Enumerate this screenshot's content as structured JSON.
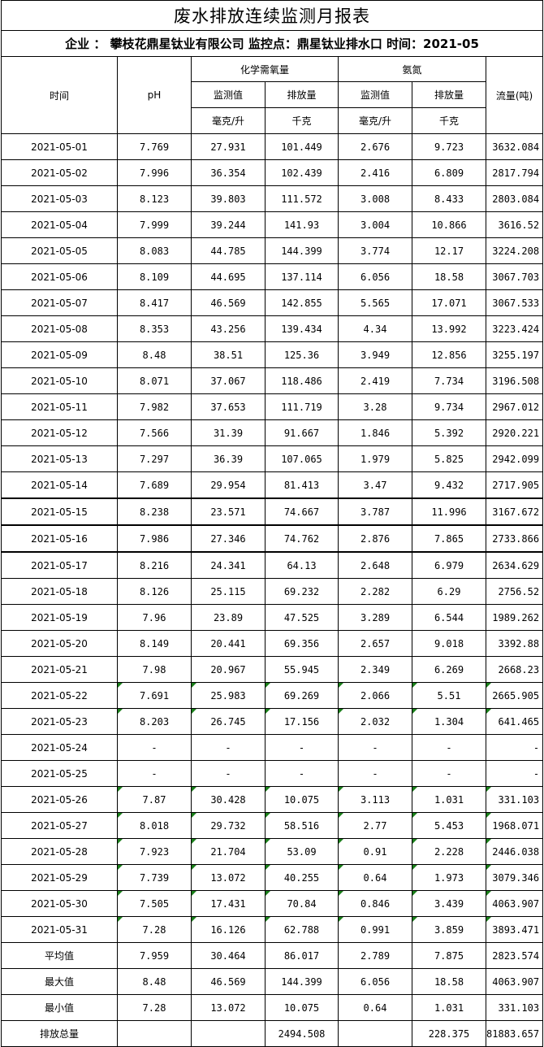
{
  "title": "废水排放连续监测月报表",
  "info": "企业 ： 攀枝花鼎星钛业有限公司 监控点：鼎星钛业排水口 时间：2021-05",
  "headers": {
    "time": "时间",
    "ph": "pH",
    "cod_group": "化学需氧量",
    "nh_group": "氨氮",
    "flow": "流量(吨)",
    "measured": "监测值",
    "emission": "排放量",
    "unit_conc": "毫克/升",
    "unit_kg": "千克"
  },
  "rows": [
    {
      "date": "2021-05-01",
      "ph": "7.769",
      "cod_m": "27.931",
      "cod_e": "101.449",
      "nh_m": "2.676",
      "nh_e": "9.723",
      "flow": "3632.084"
    },
    {
      "date": "2021-05-02",
      "ph": "7.996",
      "cod_m": "36.354",
      "cod_e": "102.439",
      "nh_m": "2.416",
      "nh_e": "6.809",
      "flow": "2817.794"
    },
    {
      "date": "2021-05-03",
      "ph": "8.123",
      "cod_m": "39.803",
      "cod_e": "111.572",
      "nh_m": "3.008",
      "nh_e": "8.433",
      "flow": "2803.084"
    },
    {
      "date": "2021-05-04",
      "ph": "7.999",
      "cod_m": "39.244",
      "cod_e": "141.93",
      "nh_m": "3.004",
      "nh_e": "10.866",
      "flow": "3616.52"
    },
    {
      "date": "2021-05-05",
      "ph": "8.083",
      "cod_m": "44.785",
      "cod_e": "144.399",
      "nh_m": "3.774",
      "nh_e": "12.17",
      "flow": "3224.208"
    },
    {
      "date": "2021-05-06",
      "ph": "8.109",
      "cod_m": "44.695",
      "cod_e": "137.114",
      "nh_m": "6.056",
      "nh_e": "18.58",
      "flow": "3067.703"
    },
    {
      "date": "2021-05-07",
      "ph": "8.417",
      "cod_m": "46.569",
      "cod_e": "142.855",
      "nh_m": "5.565",
      "nh_e": "17.071",
      "flow": "3067.533"
    },
    {
      "date": "2021-05-08",
      "ph": "8.353",
      "cod_m": "43.256",
      "cod_e": "139.434",
      "nh_m": "4.34",
      "nh_e": "13.992",
      "flow": "3223.424"
    },
    {
      "date": "2021-05-09",
      "ph": "8.48",
      "cod_m": "38.51",
      "cod_e": "125.36",
      "nh_m": "3.949",
      "nh_e": "12.856",
      "flow": "3255.197"
    },
    {
      "date": "2021-05-10",
      "ph": "8.071",
      "cod_m": "37.067",
      "cod_e": "118.486",
      "nh_m": "2.419",
      "nh_e": "7.734",
      "flow": "3196.508"
    },
    {
      "date": "2021-05-11",
      "ph": "7.982",
      "cod_m": "37.653",
      "cod_e": "111.719",
      "nh_m": "3.28",
      "nh_e": "9.734",
      "flow": "2967.012"
    },
    {
      "date": "2021-05-12",
      "ph": "7.566",
      "cod_m": "31.39",
      "cod_e": "91.667",
      "nh_m": "1.846",
      "nh_e": "5.392",
      "flow": "2920.221"
    },
    {
      "date": "2021-05-13",
      "ph": "7.297",
      "cod_m": "36.39",
      "cod_e": "107.065",
      "nh_m": "1.979",
      "nh_e": "5.825",
      "flow": "2942.099"
    },
    {
      "date": "2021-05-14",
      "ph": "7.689",
      "cod_m": "29.954",
      "cod_e": "81.413",
      "nh_m": "3.47",
      "nh_e": "9.432",
      "flow": "2717.905"
    },
    {
      "date": "2021-05-15",
      "ph": "8.238",
      "cod_m": "23.571",
      "cod_e": "74.667",
      "nh_m": "3.787",
      "nh_e": "11.996",
      "flow": "3167.672"
    },
    {
      "date": "2021-05-16",
      "ph": "7.986",
      "cod_m": "27.346",
      "cod_e": "74.762",
      "nh_m": "2.876",
      "nh_e": "7.865",
      "flow": "2733.866"
    },
    {
      "date": "2021-05-17",
      "ph": "8.216",
      "cod_m": "24.341",
      "cod_e": "64.13",
      "nh_m": "2.648",
      "nh_e": "6.979",
      "flow": "2634.629"
    },
    {
      "date": "2021-05-18",
      "ph": "8.126",
      "cod_m": "25.115",
      "cod_e": "69.232",
      "nh_m": "2.282",
      "nh_e": "6.29",
      "flow": "2756.52"
    },
    {
      "date": "2021-05-19",
      "ph": "7.96",
      "cod_m": "23.89",
      "cod_e": "47.525",
      "nh_m": "3.289",
      "nh_e": "6.544",
      "flow": "1989.262"
    },
    {
      "date": "2021-05-20",
      "ph": "8.149",
      "cod_m": "20.441",
      "cod_e": "69.356",
      "nh_m": "2.657",
      "nh_e": "9.018",
      "flow": "3392.88"
    },
    {
      "date": "2021-05-21",
      "ph": "7.98",
      "cod_m": "20.967",
      "cod_e": "55.945",
      "nh_m": "2.349",
      "nh_e": "6.269",
      "flow": "2668.23"
    },
    {
      "date": "2021-05-22",
      "ph": "7.691",
      "cod_m": "25.983",
      "cod_e": "69.269",
      "nh_m": "2.066",
      "nh_e": "5.51",
      "flow": "2665.905"
    },
    {
      "date": "2021-05-23",
      "ph": "8.203",
      "cod_m": "26.745",
      "cod_e": "17.156",
      "nh_m": "2.032",
      "nh_e": "1.304",
      "flow": "641.465"
    },
    {
      "date": "2021-05-24",
      "ph": "-",
      "cod_m": "-",
      "cod_e": "-",
      "nh_m": "-",
      "nh_e": "-",
      "flow": "-"
    },
    {
      "date": "2021-05-25",
      "ph": "-",
      "cod_m": "-",
      "cod_e": "-",
      "nh_m": "-",
      "nh_e": "-",
      "flow": "-"
    },
    {
      "date": "2021-05-26",
      "ph": "7.87",
      "cod_m": "30.428",
      "cod_e": "10.075",
      "nh_m": "3.113",
      "nh_e": "1.031",
      "flow": "331.103"
    },
    {
      "date": "2021-05-27",
      "ph": "8.018",
      "cod_m": "29.732",
      "cod_e": "58.516",
      "nh_m": "2.77",
      "nh_e": "5.453",
      "flow": "1968.071"
    },
    {
      "date": "2021-05-28",
      "ph": "7.923",
      "cod_m": "21.704",
      "cod_e": "53.09",
      "nh_m": "0.91",
      "nh_e": "2.228",
      "flow": "2446.038"
    },
    {
      "date": "2021-05-29",
      "ph": "7.739",
      "cod_m": "13.072",
      "cod_e": "40.255",
      "nh_m": "0.64",
      "nh_e": "1.973",
      "flow": "3079.346"
    },
    {
      "date": "2021-05-30",
      "ph": "7.505",
      "cod_m": "17.431",
      "cod_e": "70.84",
      "nh_m": "0.846",
      "nh_e": "3.439",
      "flow": "4063.907"
    },
    {
      "date": "2021-05-31",
      "ph": "7.28",
      "cod_m": "16.126",
      "cod_e": "62.788",
      "nh_m": "0.991",
      "nh_e": "3.859",
      "flow": "3893.471"
    }
  ],
  "summary": {
    "avg": {
      "label": "平均值",
      "ph": "7.959",
      "cod_m": "30.464",
      "cod_e": "86.017",
      "nh_m": "2.789",
      "nh_e": "7.875",
      "flow": "2823.574"
    },
    "max": {
      "label": "最大值",
      "ph": "8.48",
      "cod_m": "46.569",
      "cod_e": "144.399",
      "nh_m": "6.056",
      "nh_e": "18.58",
      "flow": "4063.907"
    },
    "min": {
      "label": "最小值",
      "ph": "7.28",
      "cod_m": "13.072",
      "cod_e": "10.075",
      "nh_m": "0.64",
      "nh_e": "1.031",
      "flow": "331.103"
    },
    "total": {
      "label": "排放总量",
      "ph": "",
      "cod_m": "",
      "cod_e": "2494.508",
      "nh_m": "",
      "nh_e": "228.375",
      "flow": "81883.657"
    }
  }
}
